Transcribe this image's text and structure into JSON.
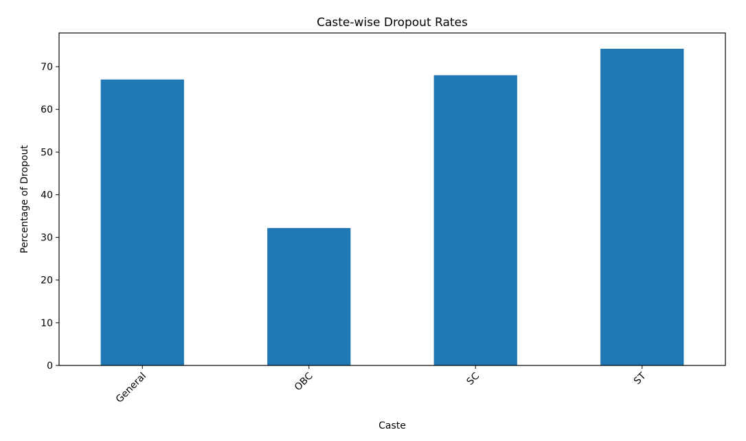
{
  "chart_data": {
    "type": "bar",
    "title": "Caste-wise Dropout Rates",
    "xlabel": "Caste",
    "ylabel": "Percentage of Dropout",
    "categories": [
      "General",
      "OBC",
      "SC",
      "ST"
    ],
    "values": [
      67.0,
      32.2,
      68.0,
      74.2
    ],
    "ylim": [
      0,
      77.9
    ],
    "yticks": [
      0,
      10,
      20,
      30,
      40,
      50,
      60,
      70
    ],
    "xtick_rotation": 45,
    "bar_color": "#1f77b4",
    "grid": false,
    "legend": "none"
  }
}
